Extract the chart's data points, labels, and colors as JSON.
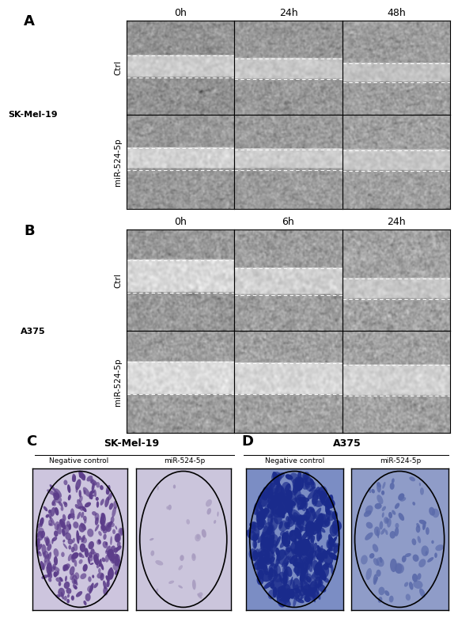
{
  "panel_A": {
    "label": "A",
    "cell_line": "SK-Mel-19",
    "timepoints": [
      "0h",
      "24h",
      "48h"
    ],
    "rows": [
      "Ctrl",
      "miR-524-5p"
    ]
  },
  "panel_B": {
    "label": "B",
    "cell_line": "A375",
    "timepoints": [
      "0h",
      "6h",
      "24h"
    ],
    "rows": [
      "Ctrl",
      "miR-524-5p"
    ]
  },
  "panel_C": {
    "label": "C",
    "title": "SK-Mel-19",
    "sub_labels": [
      "Negative control",
      "miR-524-5p"
    ],
    "neg_bg": "#cdc5de",
    "mir_bg": "#cbc5dc",
    "neg_spot": "#5c3d8a",
    "mir_spot": "#a89cc0"
  },
  "panel_D": {
    "label": "D",
    "title": "A375",
    "sub_labels": [
      "Negative control",
      "miR-524-5p"
    ],
    "neg_bg": "#7b8dc4",
    "mir_bg": "#8f9cc8",
    "neg_spot": "#1a2b8c",
    "mir_spot": "#5a6aaa"
  },
  "figure_bg": "#ffffff",
  "text_color": "#000000",
  "label_fontsize": 13,
  "body_fontsize": 8,
  "tp_fontsize": 9
}
